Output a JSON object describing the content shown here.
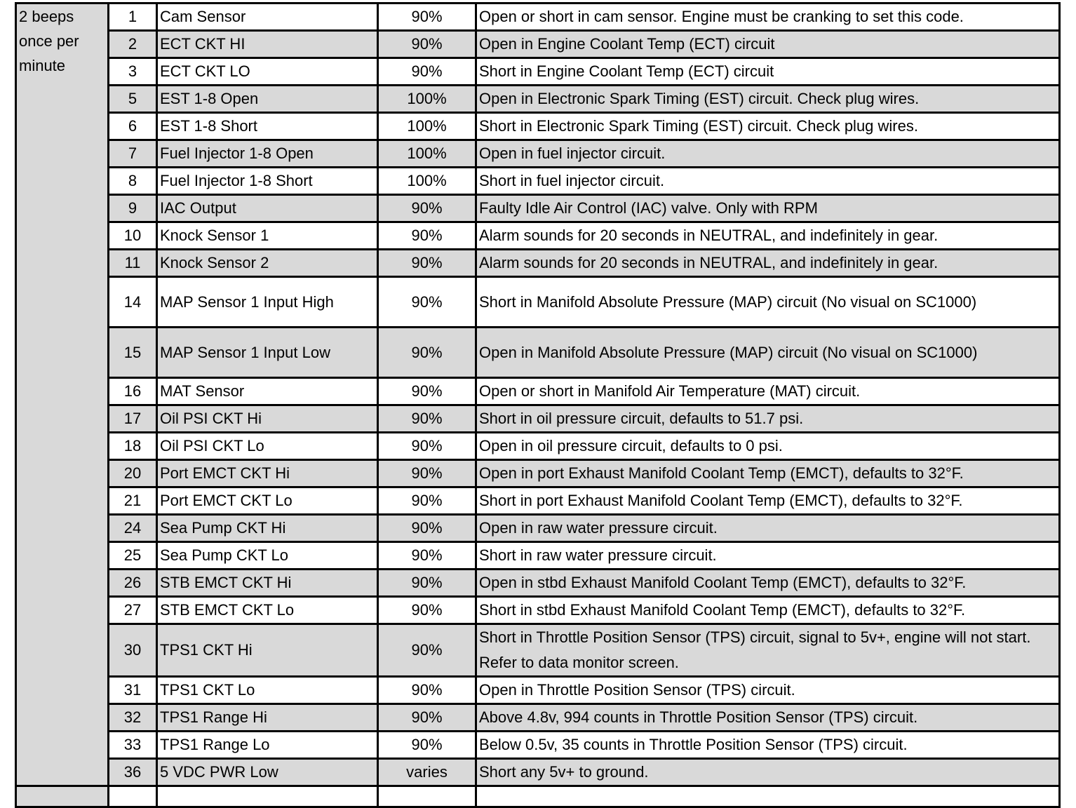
{
  "group_label": "2 beeps once per minute",
  "rows": [
    {
      "code": "1",
      "name": "Cam Sensor",
      "pct": "90%",
      "desc": "Open or short in cam sensor. Engine must be cranking to set this code."
    },
    {
      "code": "2",
      "name": "ECT CKT HI",
      "pct": "90%",
      "desc": "Open in Engine Coolant Temp (ECT) circuit"
    },
    {
      "code": "3",
      "name": "ECT CKT LO",
      "pct": "90%",
      "desc": "Short in Engine Coolant Temp (ECT) circuit"
    },
    {
      "code": "5",
      "name": "EST 1-8 Open",
      "pct": "100%",
      "desc": "Open in Electronic Spark Timing (EST) circuit. Check plug wires."
    },
    {
      "code": "6",
      "name": "EST 1-8 Short",
      "pct": "100%",
      "desc": "Short in Electronic Spark Timing (EST) circuit. Check plug wires."
    },
    {
      "code": "7",
      "name": "Fuel Injector 1-8 Open",
      "pct": "100%",
      "desc": "Open in fuel injector circuit."
    },
    {
      "code": "8",
      "name": "Fuel Injector 1-8 Short",
      "pct": "100%",
      "desc": "Short in fuel injector circuit."
    },
    {
      "code": "9",
      "name": "IAC Output",
      "pct": "90%",
      "desc": "Faulty Idle Air Control (IAC) valve. Only with RPM"
    },
    {
      "code": "10",
      "name": "Knock Sensor 1",
      "pct": "90%",
      "desc": "Alarm sounds for 20 seconds in NEUTRAL, and indefinitely in gear."
    },
    {
      "code": "11",
      "name": "Knock Sensor 2",
      "pct": "90%",
      "desc": "Alarm sounds for 20 seconds in NEUTRAL, and indefinitely in gear."
    },
    {
      "code": "14",
      "name": "MAP Sensor 1 Input High",
      "pct": "90%",
      "desc": "Short in Manifold Absolute Pressure (MAP) circuit (No visual on SC1000)",
      "tall": true
    },
    {
      "code": "15",
      "name": "MAP Sensor 1 Input Low",
      "pct": "90%",
      "desc": "Open in Manifold Absolute Pressure (MAP) circuit (No visual on SC1000)",
      "tall": true
    },
    {
      "code": "16",
      "name": "MAT Sensor",
      "pct": "90%",
      "desc": "Open or short in Manifold Air Temperature (MAT) circuit."
    },
    {
      "code": "17",
      "name": "Oil PSI CKT Hi",
      "pct": "90%",
      "desc": "Short in oil pressure circuit, defaults to 51.7 psi."
    },
    {
      "code": "18",
      "name": "Oil PSI CKT Lo",
      "pct": "90%",
      "desc": "Open in oil pressure circuit, defaults to 0 psi."
    },
    {
      "code": "20",
      "name": "Port EMCT CKT Hi",
      "pct": "90%",
      "desc": "Open in port Exhaust Manifold Coolant Temp (EMCT), defaults to 32°F."
    },
    {
      "code": "21",
      "name": "Port EMCT CKT Lo",
      "pct": "90%",
      "desc": "Short in port Exhaust Manifold Coolant Temp (EMCT), defaults to 32°F."
    },
    {
      "code": "24",
      "name": "Sea Pump CKT Hi",
      "pct": "90%",
      "desc": "Open in raw water pressure circuit."
    },
    {
      "code": "25",
      "name": "Sea Pump CKT Lo",
      "pct": "90%",
      "desc": "Short in raw water pressure circuit."
    },
    {
      "code": "26",
      "name": "STB EMCT CKT Hi",
      "pct": "90%",
      "desc": "Open in stbd Exhaust Manifold Coolant Temp (EMCT), defaults to 32°F."
    },
    {
      "code": "27",
      "name": "STB EMCT CKT Lo",
      "pct": "90%",
      "desc": "Short in stbd Exhaust Manifold Coolant Temp (EMCT), defaults to 32°F."
    },
    {
      "code": "30",
      "name": "TPS1 CKT Hi",
      "pct": "90%",
      "desc": "Short in Throttle Position Sensor (TPS) circuit, signal to 5v+, engine will not start. Refer to data monitor screen.",
      "tall": true
    },
    {
      "code": "31",
      "name": "TPS1 CKT Lo",
      "pct": "90%",
      "desc": "Open in Throttle Position Sensor (TPS) circuit."
    },
    {
      "code": "32",
      "name": "TPS1 Range Hi",
      "pct": "90%",
      "desc": "Above 4.8v, 994 counts in Throttle Position Sensor (TPS) circuit."
    },
    {
      "code": "33",
      "name": "TPS1 Range Lo",
      "pct": "90%",
      "desc": "Below 0.5v, 35 counts in Throttle Position Sensor (TPS) circuit."
    },
    {
      "code": "36",
      "name": "5 VDC PWR Low",
      "pct": "varies",
      "desc": "Short any 5v+ to ground."
    }
  ]
}
